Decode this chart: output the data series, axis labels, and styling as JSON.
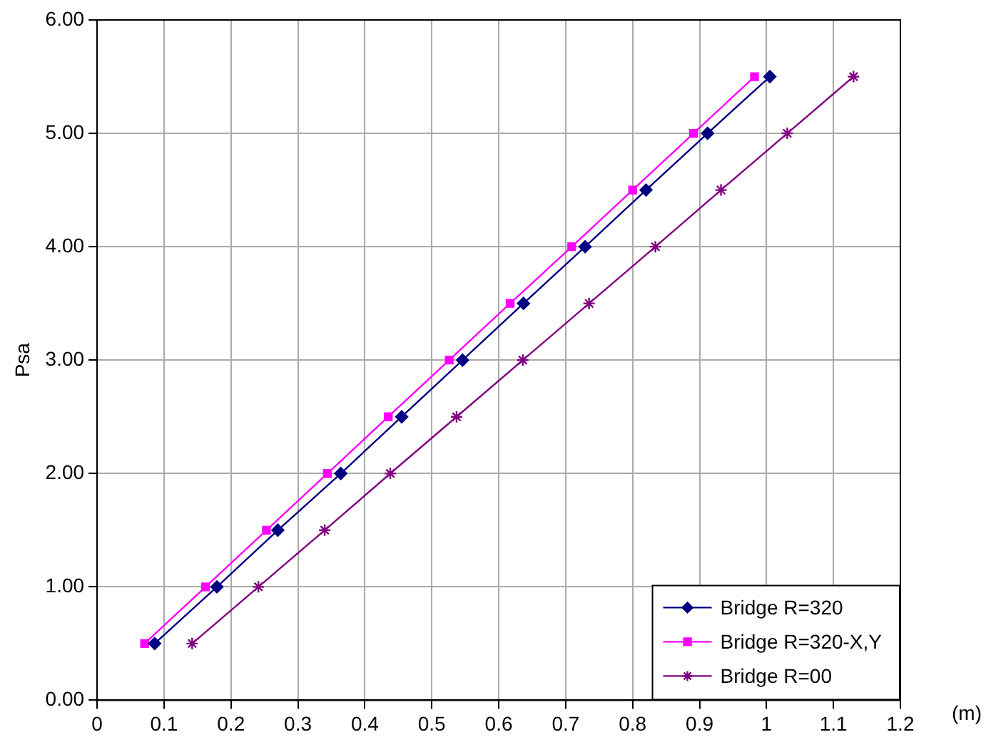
{
  "chart_data": {
    "type": "line",
    "xlabel": "(m)",
    "ylabel": "Psa",
    "xlim": [
      0,
      1.2
    ],
    "xticks": [
      0,
      0.1,
      0.2,
      0.3,
      0.4,
      0.5,
      0.6,
      0.7,
      0.8,
      0.9,
      1,
      1.1,
      1.2
    ],
    "ylim": [
      0,
      6
    ],
    "yticks": [
      {
        "value": 0,
        "label": "0.00"
      },
      {
        "value": 1,
        "label": "1.00"
      },
      {
        "value": 2,
        "label": "2.00"
      },
      {
        "value": 3,
        "label": "3.00"
      },
      {
        "value": 4,
        "label": "4.00"
      },
      {
        "value": 5,
        "label": "5.00"
      },
      {
        "value": 6,
        "label": "6.00"
      }
    ],
    "grid": true,
    "legend": "bottom right",
    "line_style": "solid",
    "series": [
      {
        "name": "Bridge R=320",
        "color": "#000080",
        "marker": "diamond",
        "x": [
          0.086,
          0.179,
          0.27,
          0.364,
          0.455,
          0.546,
          0.637,
          0.729,
          0.82,
          0.912,
          1.005
        ],
        "values": [
          0.5,
          1,
          1.5,
          2,
          2.5,
          3,
          3.5,
          4,
          4.5,
          5,
          5.5
        ]
      },
      {
        "name": "Bridge R=320-X,Y",
        "color": "#ff00ff",
        "marker": "square",
        "x": [
          0.071,
          0.162,
          0.253,
          0.344,
          0.435,
          0.526,
          0.617,
          0.709,
          0.8,
          0.891,
          0.982
        ],
        "values": [
          0.5,
          1,
          1.5,
          2,
          2.5,
          3,
          3.5,
          4,
          4.5,
          5,
          5.5
        ]
      },
      {
        "name": "Bridge R=00",
        "color": "#800080",
        "marker": "cross",
        "x": [
          0.142,
          0.241,
          0.34,
          0.438,
          0.537,
          0.636,
          0.735,
          0.834,
          0.932,
          1.031,
          1.13
        ],
        "values": [
          0.5,
          1,
          1.5,
          2,
          2.5,
          3,
          3.5,
          4,
          4.5,
          5,
          5.5
        ]
      }
    ]
  }
}
